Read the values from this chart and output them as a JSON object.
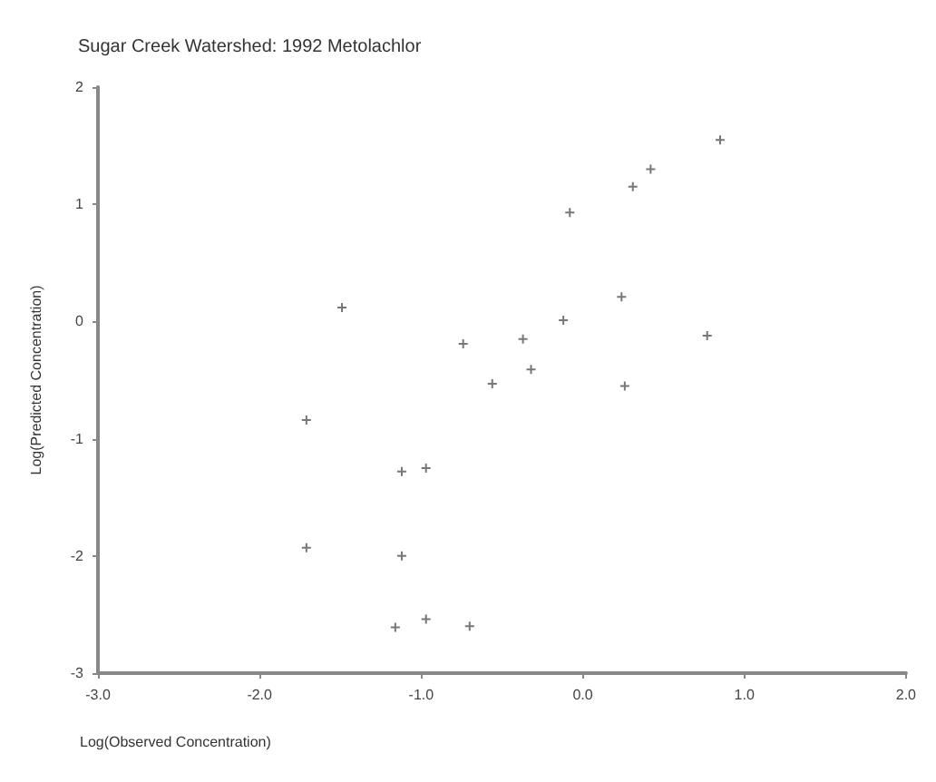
{
  "chart_data": {
    "type": "scatter",
    "title": "Sugar Creek Watershed: 1992 Metolachlor",
    "xlabel": "Log(Observed Concentration)",
    "ylabel": "Log(Predicted Concentration)",
    "x": [
      -1.49,
      -1.71,
      -1.71,
      -1.12,
      -0.97,
      -1.12,
      -1.16,
      -0.97,
      -0.7,
      -0.74,
      0.85,
      0.42,
      0.31,
      -0.08,
      0.24,
      -0.12,
      -0.37,
      -0.32,
      -0.56,
      0.26,
      0.77
    ],
    "values": [
      0.12,
      -0.84,
      -1.93,
      -1.28,
      -1.25,
      -2.0,
      -2.61,
      -2.54,
      -2.6,
      -0.19,
      1.55,
      1.3,
      1.15,
      0.93,
      0.21,
      0.01,
      -0.15,
      -0.41,
      -0.53,
      -0.55,
      -0.12
    ],
    "color": "#555555",
    "marker": "cross",
    "grid": false,
    "xlim": [
      -3,
      2
    ],
    "xticks": [
      {
        "value": -3,
        "label": "-3.0"
      },
      {
        "value": -2,
        "label": "-2.0"
      },
      {
        "value": -1,
        "label": "-1.0"
      },
      {
        "value": 0,
        "label": "0.0"
      },
      {
        "value": 1,
        "label": "1.0"
      },
      {
        "value": 2,
        "label": "2.0"
      }
    ],
    "ylim": [
      -3,
      2
    ],
    "yticks": [
      -3,
      -2,
      -1,
      0,
      1,
      2
    ]
  }
}
